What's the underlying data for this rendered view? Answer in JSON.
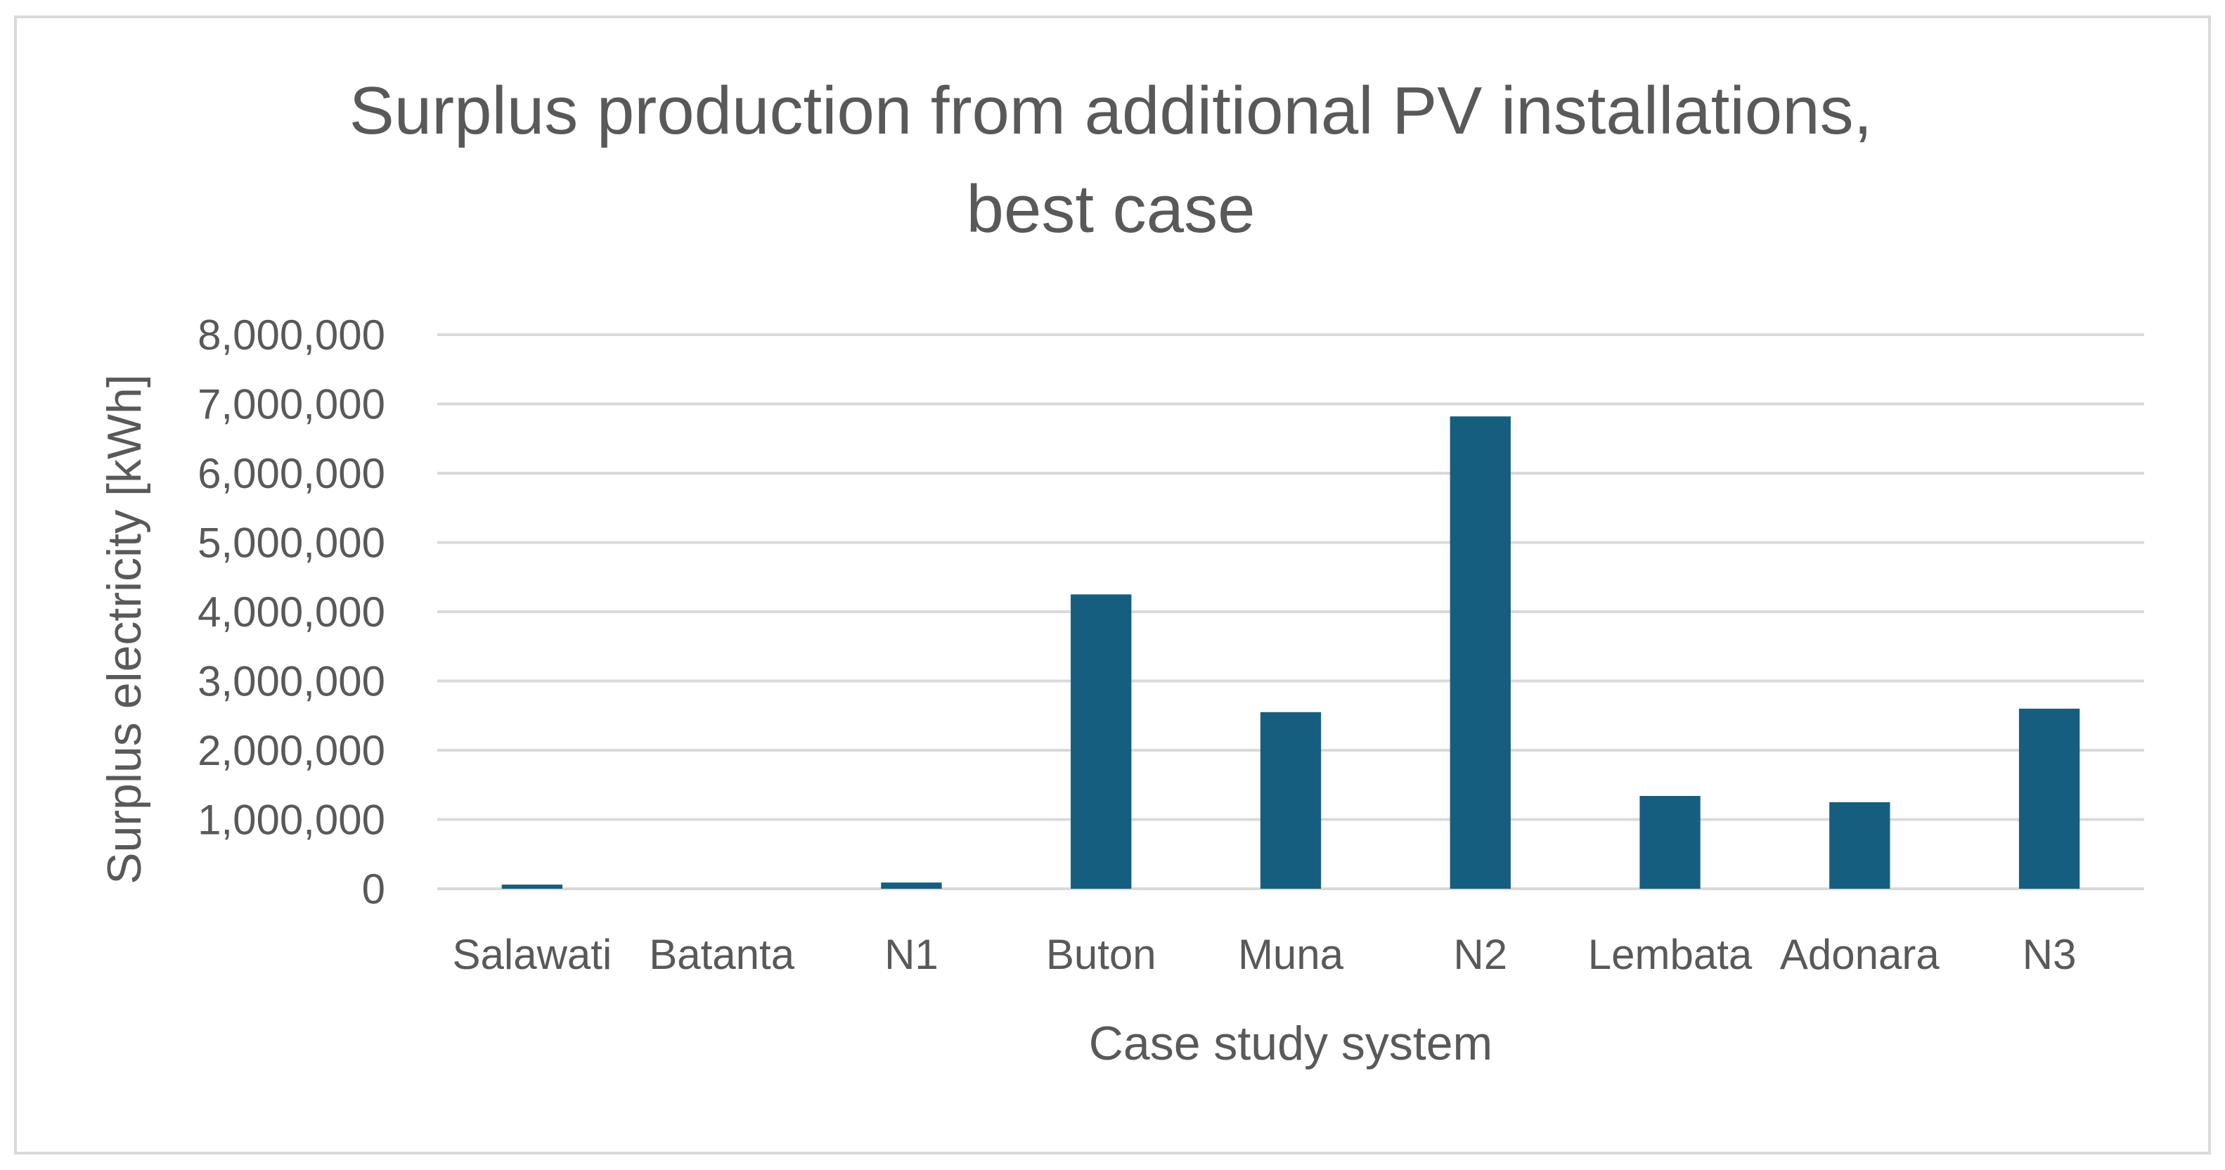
{
  "chart_data": {
    "type": "bar",
    "title_lines": [
      "Surplus production from additional PV installations,",
      "best case"
    ],
    "xlabel": "Case study system",
    "ylabel": "Surplus electricity [kWh]",
    "categories": [
      "Salawati",
      "Batanta",
      "N1",
      "Buton",
      "Muna",
      "N2",
      "Lembata",
      "Adonara",
      "N3"
    ],
    "values": [
      60000,
      0,
      90000,
      4250000,
      2550000,
      6820000,
      1340000,
      1250000,
      2600000
    ],
    "ylim": [
      0,
      8000000
    ],
    "yticks": [
      0,
      1000000,
      2000000,
      3000000,
      4000000,
      5000000,
      6000000,
      7000000,
      8000000
    ],
    "ytick_labels": [
      "0",
      "1,000,000",
      "2,000,000",
      "3,000,000",
      "4,000,000",
      "5,000,000",
      "6,000,000",
      "7,000,000",
      "8,000,000"
    ],
    "grid": true,
    "legend": "none",
    "bar_color": "#165e80",
    "grid_color": "#d9d9d9"
  }
}
